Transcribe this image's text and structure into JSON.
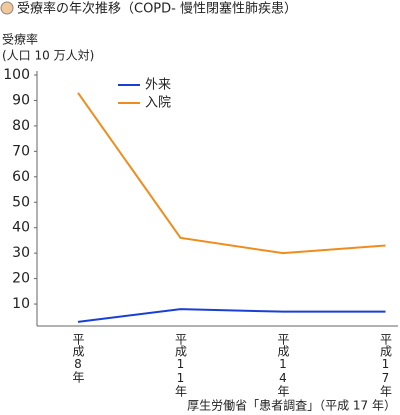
{
  "chart_data": {
    "type": "line",
    "title": "受療率の年次推移（COPD- 慢性閉塞性肺疾患）",
    "y_label": "受療率",
    "y_unit": "(人口 10 万人対)",
    "source": "厚生労働省「患者調査」（平成 17 年）",
    "categories": [
      "平成8年",
      "平成11年",
      "平成14年",
      "平成17年"
    ],
    "series": [
      {
        "name": "外来",
        "color": "#1a3fd6",
        "values": [
          3,
          8,
          7,
          7
        ]
      },
      {
        "name": "入院",
        "color": "#f08c1e",
        "values": [
          93,
          36,
          30,
          33
        ]
      }
    ],
    "ylim": [
      0,
      100
    ],
    "yticks": [
      10,
      20,
      30,
      40,
      50,
      60,
      70,
      80,
      90,
      100
    ],
    "grid": false
  }
}
